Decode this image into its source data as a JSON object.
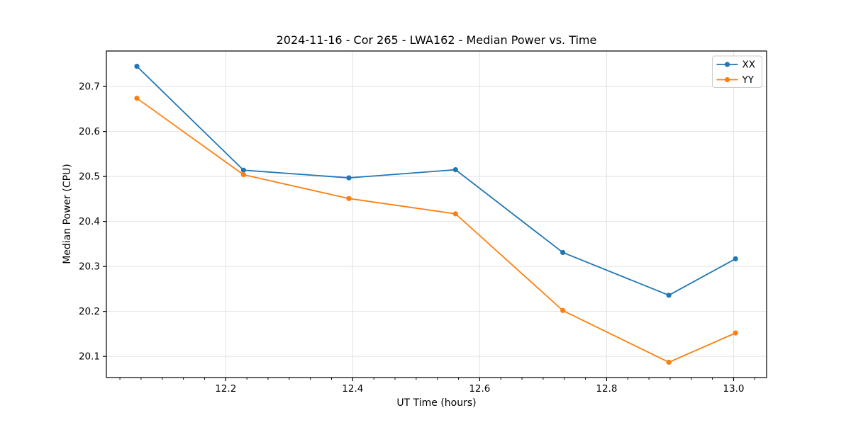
{
  "figure": {
    "background": "#ffffff"
  },
  "chart_data": {
    "type": "line",
    "title": "2024-11-16 - Cor 265 - LWA162 - Median Power vs. Time",
    "xlabel": "UT Time (hours)",
    "ylabel": "Median Power (CPU)",
    "x": [
      12.06,
      12.228,
      12.394,
      12.562,
      12.731,
      12.898,
      13.003
    ],
    "series": [
      {
        "name": "XX",
        "color": "#1f77b4",
        "values": [
          20.745,
          20.514,
          20.497,
          20.515,
          20.331,
          20.236,
          20.317
        ]
      },
      {
        "name": "YY",
        "color": "#ff7f0e",
        "values": [
          20.674,
          20.504,
          20.451,
          20.417,
          20.202,
          20.087,
          20.152
        ]
      }
    ],
    "xlim": [
      12.012,
      13.052
    ],
    "ylim": [
      20.053,
      20.779
    ],
    "xticks": [
      12.2,
      12.4,
      12.6,
      12.8,
      13.0
    ],
    "xtick_labels": [
      "12.2",
      "12.4",
      "12.6",
      "12.8",
      "13.0"
    ],
    "x_minor_step": 0.0333333,
    "yticks": [
      20.1,
      20.2,
      20.3,
      20.4,
      20.5,
      20.6,
      20.7
    ],
    "ytick_labels": [
      "20.1",
      "20.2",
      "20.3",
      "20.4",
      "20.5",
      "20.6",
      "20.7"
    ],
    "grid": true,
    "grid_color": "#e2e2e2",
    "axis_color": "#000000",
    "marker": "circle",
    "legend": {
      "position": "upper right",
      "entries": [
        "XX",
        "YY"
      ]
    }
  }
}
